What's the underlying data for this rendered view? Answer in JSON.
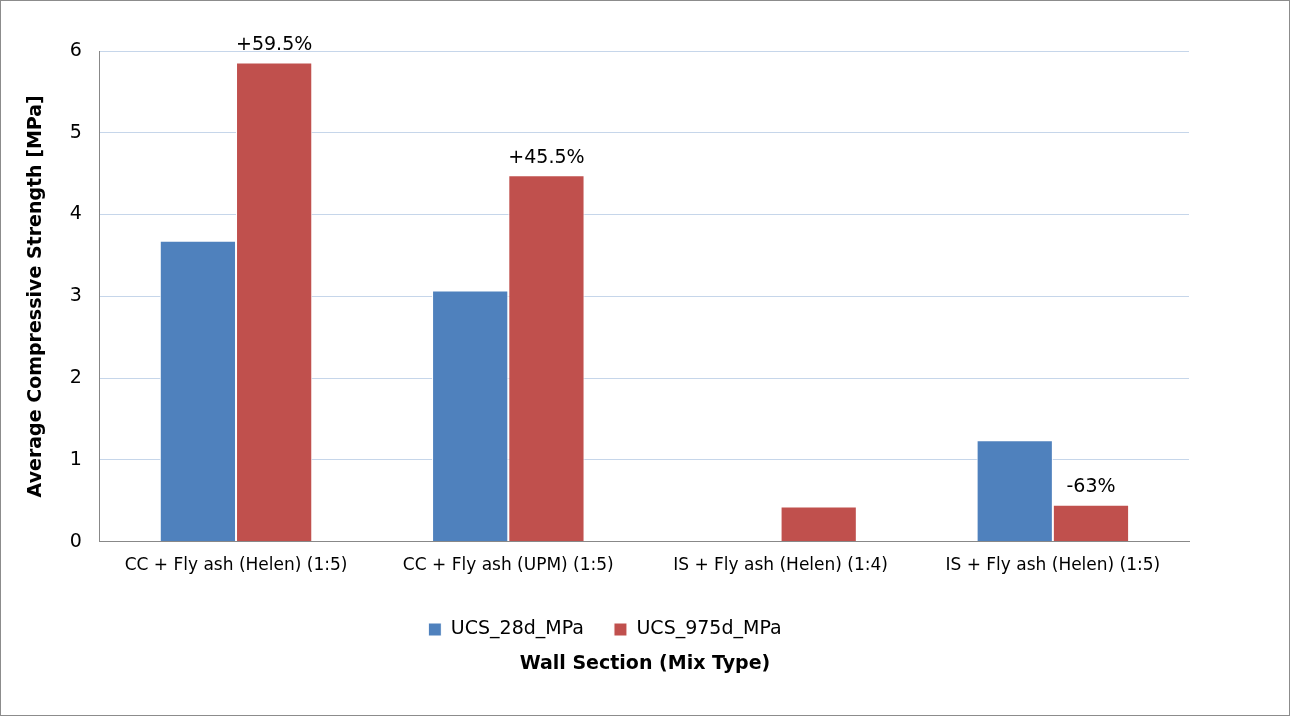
{
  "chart_data": {
    "type": "bar",
    "ylabel": "Average Compressive Strength [MPa]",
    "xlabel": "Wall Section (Mix Type)",
    "categories": [
      "CC + Fly ash (Helen) (1:5)",
      "CC + Fly ash (UPM) (1:5)",
      "IS + Fly ash (Helen) (1:4)",
      "IS + Fly ash (Helen) (1:5)"
    ],
    "series": [
      {
        "name": "UCS_28d_MPa",
        "color": "#4f81bd",
        "values": [
          3.68,
          3.07,
          null,
          1.24
        ]
      },
      {
        "name": "UCS_975d_MPa",
        "color": "#c0504d",
        "values": [
          5.86,
          4.48,
          0.43,
          0.45
        ]
      }
    ],
    "ylim": [
      0,
      6
    ],
    "yticks": [
      0,
      1,
      2,
      3,
      4,
      5,
      6
    ],
    "grid": "y",
    "legend": "bottom",
    "annotations": [
      {
        "text": "+59.5%",
        "x": "CC + Fly ash (Helen) (1:5)",
        "y": 5.86
      },
      {
        "text": "+45.5%",
        "x": "CC + Fly ash (UPM) (1:5)",
        "y": 4.48
      },
      {
        "text": "-63%",
        "x": "IS + Fly ash (Helen) (1:5)",
        "y": 0.45
      }
    ]
  }
}
